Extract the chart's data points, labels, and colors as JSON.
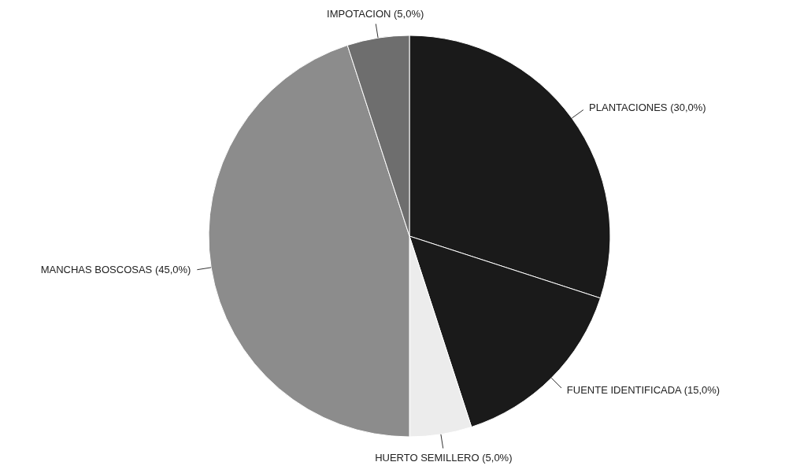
{
  "chart_data": {
    "type": "pie",
    "categories": [
      "PLANTACIONES",
      "FUENTE IDENTIFICADA",
      "HUERTO SEMILLERO",
      "MANCHAS BOSCOSAS",
      "IMPOTACION"
    ],
    "values": [
      30,
      15,
      5,
      45,
      5
    ],
    "value_labels": [
      "(30,0%)",
      "(15,0%)",
      "(5,0%)",
      "(45,0%)",
      "(5,0%)"
    ],
    "colors": [
      "#1a1a1a",
      "#1a1a1a",
      "#ececec",
      "#8c8c8c",
      "#6e6e6e"
    ]
  }
}
